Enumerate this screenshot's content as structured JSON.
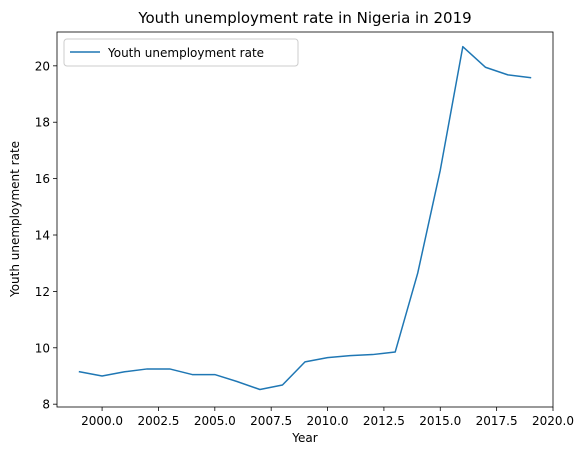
{
  "chart_data": {
    "type": "line",
    "title": "Youth unemployment rate in Nigeria in 2019",
    "xlabel": "Year",
    "ylabel": "Youth unemployment rate",
    "xlim": [
      1998.0,
      2020.0
    ],
    "ylim": [
      7.9,
      21.2
    ],
    "x_ticks": [
      2000.0,
      2002.5,
      2005.0,
      2007.5,
      2010.0,
      2012.5,
      2015.0,
      2017.5,
      2020.0
    ],
    "x_tick_labels": [
      "2000.0",
      "2002.5",
      "2005.0",
      "2007.5",
      "2010.0",
      "2012.5",
      "2015.0",
      "2017.5",
      "2020.0"
    ],
    "y_ticks": [
      8,
      10,
      12,
      14,
      16,
      18,
      20
    ],
    "y_tick_labels": [
      "8",
      "10",
      "12",
      "14",
      "16",
      "18",
      "20"
    ],
    "grid": false,
    "legend_position": "top-left",
    "series": [
      {
        "name": "Youth unemployment rate",
        "color": "#1f77b4",
        "x": [
          1999,
          2000,
          2001,
          2002,
          2003,
          2004,
          2005,
          2006,
          2007,
          2008,
          2009,
          2010,
          2011,
          2012,
          2013,
          2014,
          2015,
          2016,
          2017,
          2018,
          2019
        ],
        "y": [
          9.15,
          9.0,
          9.15,
          9.25,
          9.25,
          9.05,
          9.05,
          8.8,
          8.52,
          8.68,
          9.5,
          9.65,
          9.72,
          9.76,
          9.85,
          12.65,
          16.3,
          20.68,
          19.95,
          19.68,
          19.58
        ]
      }
    ]
  }
}
